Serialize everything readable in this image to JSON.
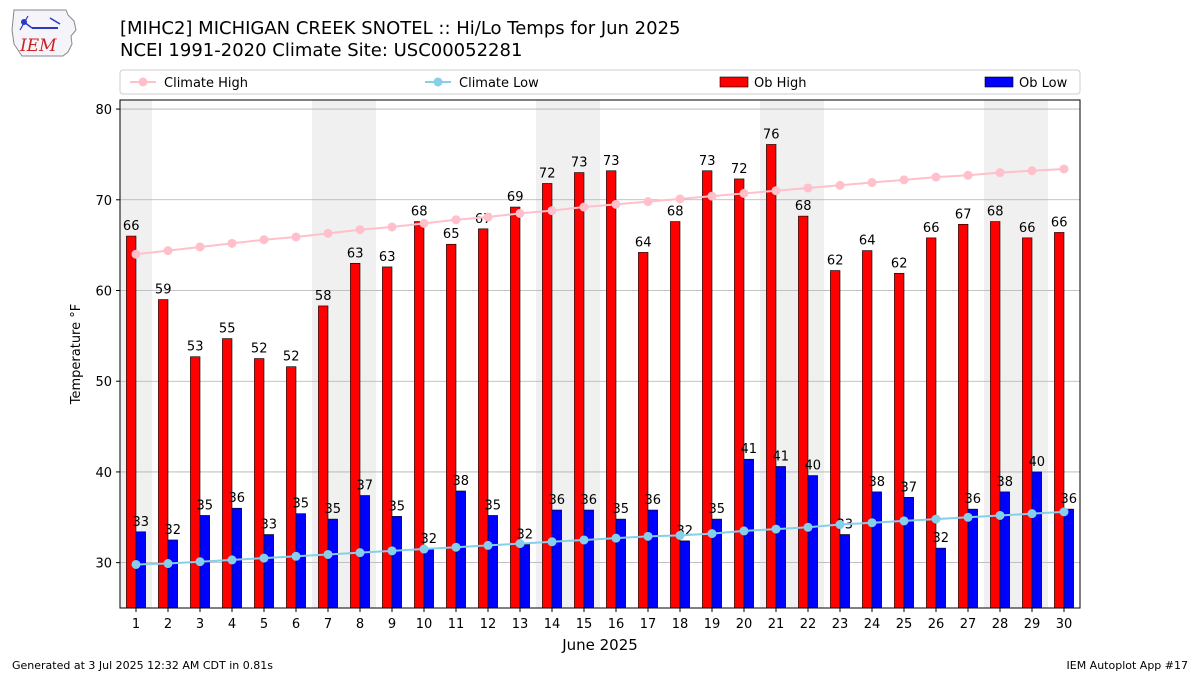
{
  "header": {
    "logo_text": "IEM",
    "title_line1": "[MIHC2] MICHIGAN CREEK SNOTEL :: Hi/Lo Temps for Jun 2025",
    "title_line2": "NCEI 1991-2020 Climate Site: USC00052281"
  },
  "footer": {
    "generated": "Generated at 3 Jul 2025 12:32 AM CDT in 0.81s",
    "app": "IEM Autoplot App #17"
  },
  "colors": {
    "climate_high": "#ffc0cb",
    "climate_low": "#87ceeb",
    "ob_high": "#ff0000",
    "ob_low": "#0000ff",
    "weekend_shade": "#f0f0f0"
  },
  "chart_data": {
    "type": "bar",
    "xlabel": "June 2025",
    "ylabel": "Temperature °F",
    "ylim": [
      25,
      81
    ],
    "yticks": [
      30,
      40,
      50,
      60,
      70,
      80
    ],
    "grid": true,
    "legend_placement": "top",
    "categories": [
      "1",
      "2",
      "3",
      "4",
      "5",
      "6",
      "7",
      "8",
      "9",
      "10",
      "11",
      "12",
      "13",
      "14",
      "15",
      "16",
      "17",
      "18",
      "19",
      "20",
      "21",
      "22",
      "23",
      "24",
      "25",
      "26",
      "27",
      "28",
      "29",
      "30"
    ],
    "shaded_days": [
      1,
      7,
      8,
      14,
      15,
      21,
      22,
      28,
      29
    ],
    "series": [
      {
        "name": "Climate High",
        "kind": "line",
        "values": [
          64.0,
          64.4,
          64.8,
          65.2,
          65.6,
          65.9,
          66.3,
          66.7,
          67.0,
          67.4,
          67.8,
          68.1,
          68.5,
          68.8,
          69.2,
          69.5,
          69.8,
          70.1,
          70.4,
          70.7,
          71.0,
          71.3,
          71.6,
          71.9,
          72.2,
          72.5,
          72.7,
          73.0,
          73.2,
          73.4
        ]
      },
      {
        "name": "Climate Low",
        "kind": "line",
        "values": [
          29.8,
          29.9,
          30.1,
          30.3,
          30.5,
          30.7,
          30.9,
          31.1,
          31.3,
          31.5,
          31.7,
          31.9,
          32.1,
          32.3,
          32.5,
          32.7,
          32.9,
          33.0,
          33.2,
          33.5,
          33.7,
          33.9,
          34.2,
          34.4,
          34.6,
          34.8,
          35.0,
          35.2,
          35.4,
          35.6
        ]
      },
      {
        "name": "Ob High",
        "kind": "bar",
        "values": [
          66.0,
          59.0,
          52.7,
          54.7,
          52.5,
          51.6,
          58.3,
          63.0,
          62.6,
          67.6,
          65.1,
          66.8,
          69.2,
          71.8,
          73.0,
          73.2,
          64.2,
          67.6,
          73.2,
          72.3,
          76.1,
          68.2,
          62.2,
          64.4,
          61.9,
          65.8,
          67.3,
          67.6,
          65.8,
          66.4
        ],
        "labels": [
          "66",
          "59",
          "53",
          "55",
          "52",
          "52",
          "58",
          "63",
          "63",
          "68",
          "65",
          "67",
          "69",
          "72",
          "73",
          "73",
          "64",
          "68",
          "73",
          "72",
          "76",
          "68",
          "62",
          "64",
          "62",
          "66",
          "67",
          "68",
          "66",
          "66"
        ]
      },
      {
        "name": "Ob Low",
        "kind": "bar",
        "values": [
          33.4,
          32.5,
          35.2,
          36.0,
          33.1,
          35.4,
          34.8,
          37.4,
          35.1,
          31.5,
          37.9,
          35.2,
          32.0,
          35.8,
          35.8,
          34.8,
          35.8,
          32.4,
          34.8,
          41.4,
          40.6,
          39.6,
          33.1,
          37.8,
          37.2,
          31.6,
          35.9,
          37.8,
          40.0,
          35.9
        ],
        "labels": [
          "33",
          "32",
          "35",
          "36",
          "33",
          "35",
          "35",
          "37",
          "35",
          "32",
          "38",
          "35",
          "32",
          "36",
          "36",
          "35",
          "36",
          "32",
          "35",
          "41",
          "41",
          "40",
          "33",
          "38",
          "37",
          "32",
          "36",
          "38",
          "40",
          "36"
        ]
      }
    ]
  }
}
